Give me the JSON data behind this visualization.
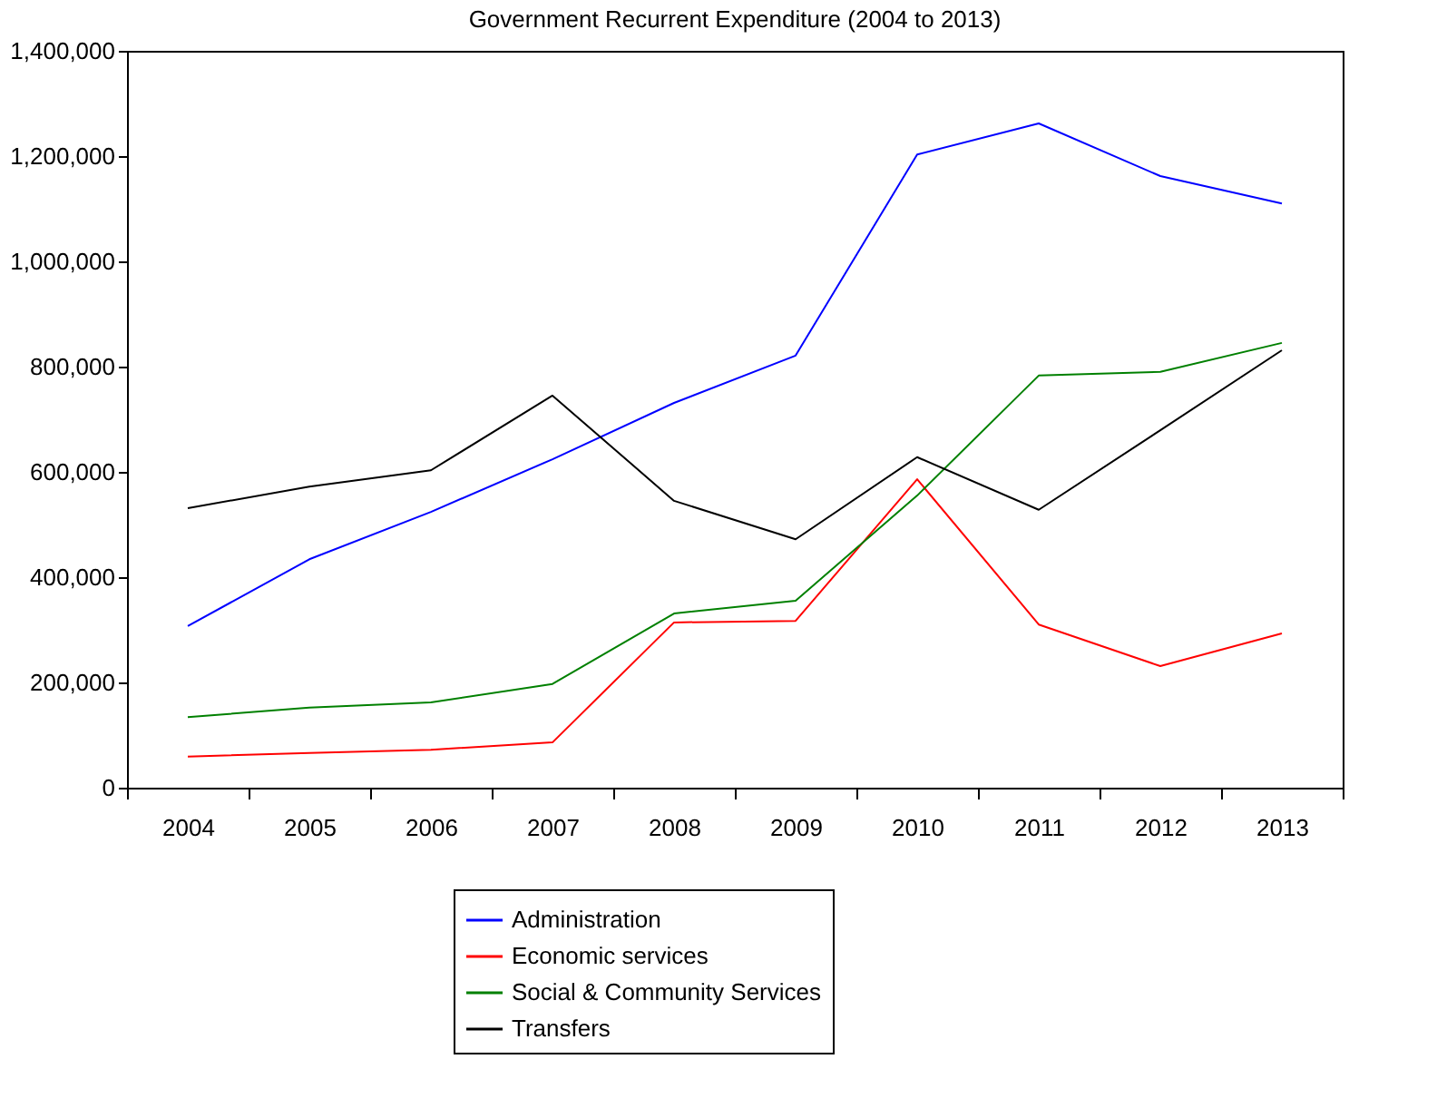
{
  "chart_data": {
    "type": "line",
    "title": "Government Recurrent Expenditure (2004 to 2013)",
    "categories": [
      "2004",
      "2005",
      "2006",
      "2007",
      "2008",
      "2009",
      "2010",
      "2011",
      "2012",
      "2013"
    ],
    "series": [
      {
        "name": "Administration",
        "color": "#0000ff",
        "values": [
          307000,
          434000,
          524000,
          624000,
          731000,
          821000,
          1203000,
          1262000,
          1162000,
          1110000
        ]
      },
      {
        "name": "Economic services",
        "color": "#ff0000",
        "values": [
          59000,
          66000,
          72000,
          86000,
          314000,
          317000,
          586000,
          310000,
          231000,
          293000
        ]
      },
      {
        "name": "Social & Community Services",
        "color": "#008000",
        "values": [
          134000,
          152000,
          162000,
          197000,
          331000,
          355000,
          555000,
          783000,
          790000,
          845000
        ]
      },
      {
        "name": "Transfers",
        "color": "#000000",
        "values": [
          531000,
          572000,
          603000,
          745000,
          545000,
          472000,
          628000,
          528000,
          679000,
          831000
        ]
      }
    ],
    "ylim": [
      0,
      1400000
    ],
    "yticks": [
      {
        "value": 0,
        "label": "0"
      },
      {
        "value": 200000,
        "label": "200,000"
      },
      {
        "value": 400000,
        "label": "400,000"
      },
      {
        "value": 600000,
        "label": "600,000"
      },
      {
        "value": 800000,
        "label": "800,000"
      },
      {
        "value": 1000000,
        "label": "1,000,000"
      },
      {
        "value": 1200000,
        "label": "1,200,000"
      },
      {
        "value": 1400000,
        "label": "1,400,000"
      }
    ],
    "grid": false,
    "legend": "bottom",
    "marker": "none",
    "line_style": "solid"
  }
}
